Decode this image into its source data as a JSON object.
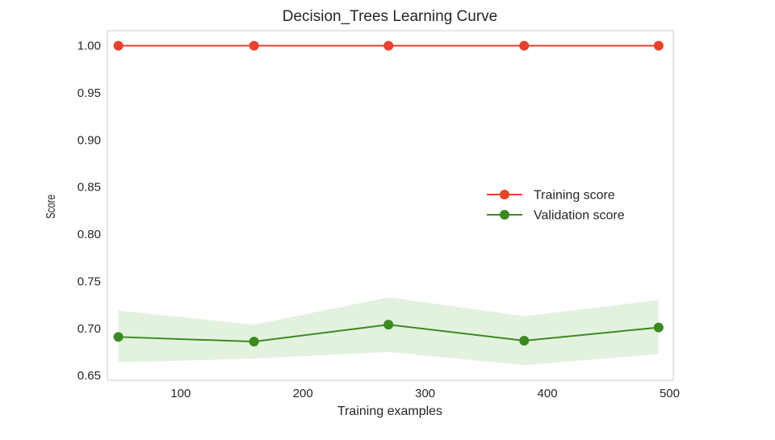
{
  "chart_data": {
    "type": "line",
    "title": "Decision_Trees Learning Curve",
    "xlabel": "Training examples",
    "ylabel": "Score",
    "xlim": [
      40,
      503
    ],
    "ylim": [
      0.645,
      1.016
    ],
    "xticks": [
      100,
      200,
      300,
      400,
      500
    ],
    "xtick_labels": [
      "100",
      "200",
      "300",
      "400",
      "500"
    ],
    "yticks": [
      0.65,
      0.7,
      0.75,
      0.8,
      0.85,
      0.9,
      0.95,
      1.0
    ],
    "ytick_labels": [
      "0.65",
      "0.70",
      "0.75",
      "0.80",
      "0.85",
      "0.90",
      "0.95",
      "1.00"
    ],
    "grid": false,
    "legend_position": "center-right",
    "x": [
      49,
      160,
      270,
      381,
      491
    ],
    "series": [
      {
        "name": "Training score",
        "color": "#e8412c",
        "values": [
          1.0,
          1.0,
          1.0,
          1.0,
          1.0
        ],
        "band_lower": [
          1.0,
          1.0,
          1.0,
          1.0,
          1.0
        ],
        "band_upper": [
          1.0,
          1.0,
          1.0,
          1.0,
          1.0
        ]
      },
      {
        "name": "Validation score",
        "color": "#3a8a1f",
        "band_color": "#e0efdc",
        "values": [
          0.691,
          0.686,
          0.704,
          0.687,
          0.701
        ],
        "band_lower": [
          0.664,
          0.668,
          0.675,
          0.661,
          0.673
        ],
        "band_upper": [
          0.719,
          0.704,
          0.733,
          0.713,
          0.73
        ]
      }
    ]
  }
}
